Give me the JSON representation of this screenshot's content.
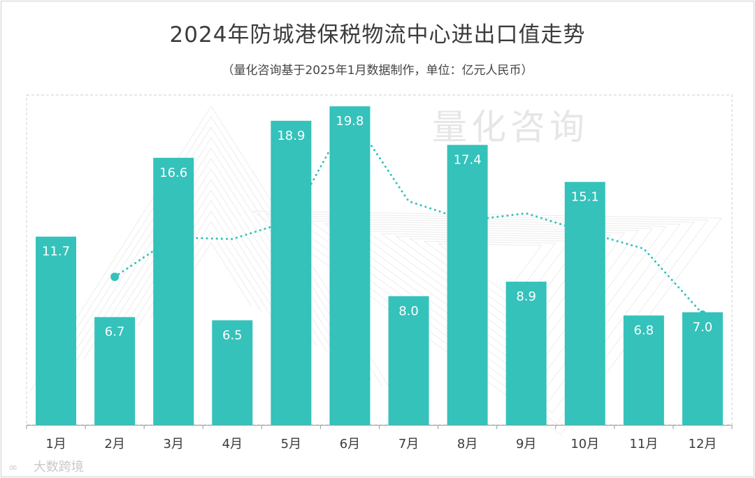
{
  "title": "2024年防城港保税物流中心进出口值走势",
  "subtitle": "（量化咨询基于2025年1月数据制作，单位：亿元人民币）",
  "watermark": "量化咨询",
  "brand": {
    "icon": "∞",
    "text": "大数跨境"
  },
  "colors": {
    "bar": "#34c2bb",
    "line": "#34c2bb",
    "text": "#3b3b3b",
    "label": "#ffffff"
  },
  "chart_data": {
    "type": "bar",
    "categories": [
      "1月",
      "2月",
      "3月",
      "4月",
      "5月",
      "6月",
      "7月",
      "8月",
      "9月",
      "10月",
      "11月",
      "12月"
    ],
    "values": [
      11.7,
      6.7,
      16.6,
      6.5,
      18.9,
      19.8,
      8.0,
      17.4,
      8.9,
      15.1,
      6.8,
      7.0
    ],
    "value_labels": [
      "11.7",
      "6.7",
      "16.6",
      "6.5",
      "18.9",
      "19.8",
      "8.0",
      "17.4",
      "8.9",
      "15.1",
      "6.8",
      "7.0"
    ],
    "trendline": {
      "style": "dotted",
      "description_type": "moving-average"
    },
    "ylim": [
      0,
      20.5
    ],
    "grid": false,
    "legend": "none"
  }
}
